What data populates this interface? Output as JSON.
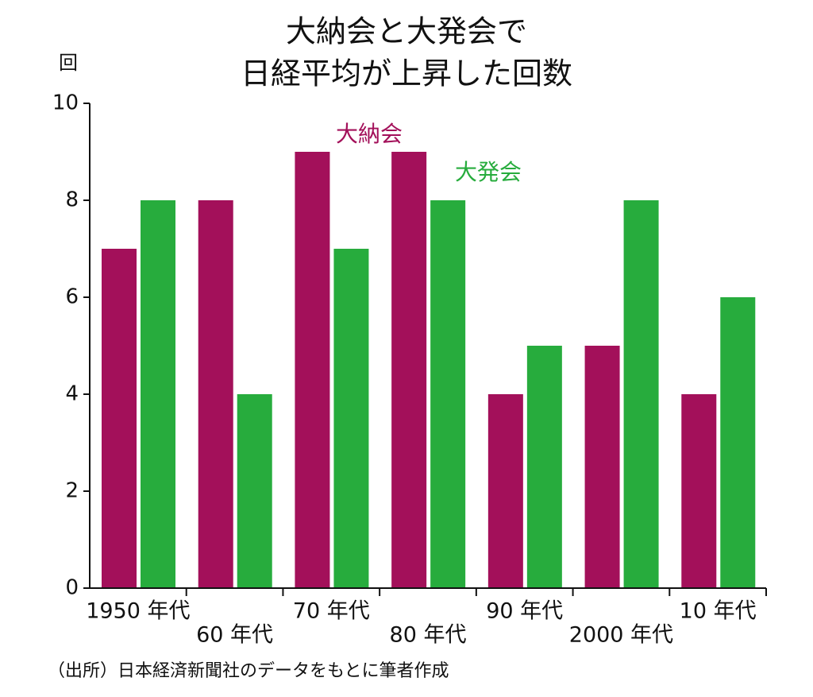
{
  "chart_data": {
    "type": "bar",
    "title_lines": [
      "大納会と大発会で",
      "日経平均が上昇した回数"
    ],
    "ylabel": "回",
    "categories": [
      "1950 年代",
      "60 年代",
      "70 年代",
      "80 年代",
      "90 年代",
      "2000 年代",
      "10 年代"
    ],
    "series": [
      {
        "name": "大納会",
        "color": "#a3105a",
        "values": [
          7,
          8,
          9,
          9,
          4,
          5,
          4
        ]
      },
      {
        "name": "大発会",
        "color": "#27ac3d",
        "values": [
          8,
          4,
          7,
          8,
          5,
          8,
          6
        ]
      }
    ],
    "ylim": [
      0,
      10
    ],
    "yticks": [
      0,
      2,
      4,
      6,
      8,
      10
    ],
    "grid": false,
    "note": "（出所）日本経済新聞社のデータをもとに筆者作成"
  }
}
